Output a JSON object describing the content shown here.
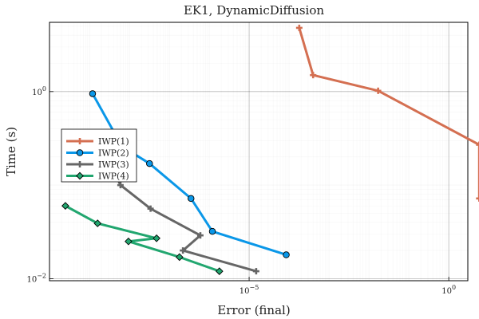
{
  "chart_data": {
    "type": "line",
    "title": "EK1, DynamicDiffusion",
    "xlabel": "Error (final)",
    "ylabel": "Time (s)",
    "xscale": "log",
    "yscale": "log",
    "xlim": [
      1e-10,
      3.0
    ],
    "ylim": [
      0.0095,
      5.5
    ],
    "x_ticks": [
      {
        "value": 1e-05,
        "base": "10",
        "exp": "−5"
      },
      {
        "value": 1.0,
        "base": "10",
        "exp": "0"
      }
    ],
    "y_ticks": [
      {
        "value": 0.01,
        "base": "10",
        "exp": "−2"
      },
      {
        "value": 1.0,
        "base": "10",
        "exp": "0"
      }
    ],
    "grid": true,
    "legend_position": "left",
    "series": [
      {
        "name": "IWP(1)",
        "color": "#d46f51",
        "marker": "cross",
        "x": [
          0.00018,
          0.0004,
          0.017,
          5.8,
          5.8
        ],
        "y": [
          4.8,
          1.5,
          1.02,
          0.27,
          0.072
        ]
      },
      {
        "name": "IWP(2)",
        "color": "#0a97e8",
        "marker": "circle",
        "x": [
          1.2e-09,
          6.5e-09,
          3.2e-08,
          3.5e-07,
          1.2e-06,
          8.5e-05
        ],
        "y": [
          0.95,
          0.26,
          0.17,
          0.072,
          0.032,
          0.018
        ]
      },
      {
        "name": "IWP(3)",
        "color": "#666666",
        "marker": "cross",
        "x": [
          1.5e-09,
          6e-09,
          3.4e-08,
          6e-07,
          2.2e-07,
          1.5e-05
        ],
        "y": [
          0.36,
          0.1,
          0.056,
          0.029,
          0.02,
          0.012
        ]
      },
      {
        "name": "IWP(4)",
        "color": "#21a66f",
        "marker": "diamond",
        "x": [
          2.5e-10,
          1.6e-09,
          4.8e-08,
          9.5e-09,
          1.8e-07,
          1.8e-06
        ],
        "y": [
          0.06,
          0.039,
          0.027,
          0.025,
          0.017,
          0.012
        ]
      }
    ]
  }
}
